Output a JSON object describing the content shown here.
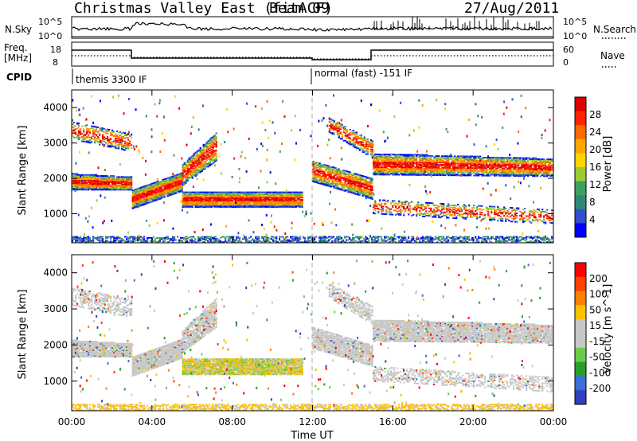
{
  "header": {
    "title": "Christmas Valley East (fitACF)",
    "beam": "Beam 09",
    "date": "27/Aug/2011"
  },
  "status_panels": {
    "nsky_label": "N.Sky",
    "nsky_ticks": [
      "10^5",
      "10^0"
    ],
    "nsearch_label": "N.Search",
    "freq_label": "Freq.",
    "freq_unit": "[MHz]",
    "freq_ticks": [
      "18",
      "8"
    ],
    "nave_label": "Nave",
    "nave_ticks": [
      "60",
      "0"
    ],
    "cpid_label": "CPID",
    "cpid_left": "themis 3300 IF",
    "cpid_right": "normal (fast) -151 IF"
  },
  "colors": {
    "power_scale": [
      "#0000ff",
      "#3050d0",
      "#2e8a78",
      "#40a060",
      "#9acd32",
      "#ffd400",
      "#ffa500",
      "#ff6a00",
      "#ff2200",
      "#dd0000"
    ],
    "velocity_scale": [
      "#3040c0",
      "#3a70d8",
      "#28a028",
      "#6ccc4a",
      "#c8c8c8",
      "#c8c8c8",
      "#ffc000",
      "#ff8000",
      "#ff4000",
      "#ff0000"
    ]
  },
  "chart_data": [
    {
      "type": "heatmap",
      "panel": "power",
      "xlabel": "",
      "ylabel": "Slant Range [km]",
      "xlim": [
        0,
        24
      ],
      "ylim": [
        180,
        4500
      ],
      "yticks": [
        "1000",
        "2000",
        "3000",
        "4000"
      ],
      "colorbar_label": "Power [dB]",
      "colorbar_ticks": [
        "4",
        "8",
        "12",
        "16",
        "20",
        "24",
        "28"
      ],
      "features": [
        {
          "range_km": [
            1700,
            2100
          ],
          "t": [
            0,
            3
          ],
          "level": "strong"
        },
        {
          "range_km": [
            1100,
            1700
          ],
          "t": [
            3,
            5.5
          ],
          "level": "strong"
        },
        {
          "range_km": [
            1200,
            1600
          ],
          "t": [
            5.5,
            11.5
          ],
          "level": "strong"
        },
        {
          "range_km": [
            1700,
            2500
          ],
          "t": [
            12,
            15
          ],
          "level": "medium"
        },
        {
          "range_km": [
            2000,
            2600
          ],
          "t": [
            15,
            24
          ],
          "level": "medium"
        }
      ]
    },
    {
      "type": "heatmap",
      "panel": "velocity",
      "xlabel": "Time UT",
      "ylabel": "Slant Range [km]",
      "xlim": [
        0,
        24
      ],
      "ylim": [
        180,
        4500
      ],
      "xticks": [
        "00:00",
        "04:00",
        "08:00",
        "12:00",
        "16:00",
        "20:00",
        "00:00"
      ],
      "yticks": [
        "1000",
        "2000",
        "3000",
        "4000"
      ],
      "colorbar_label": "Velocity [m s^-1]",
      "colorbar_ticks": [
        "200",
        "100",
        "50",
        "15",
        "-15",
        "-50",
        "-100",
        "-200"
      ]
    }
  ]
}
